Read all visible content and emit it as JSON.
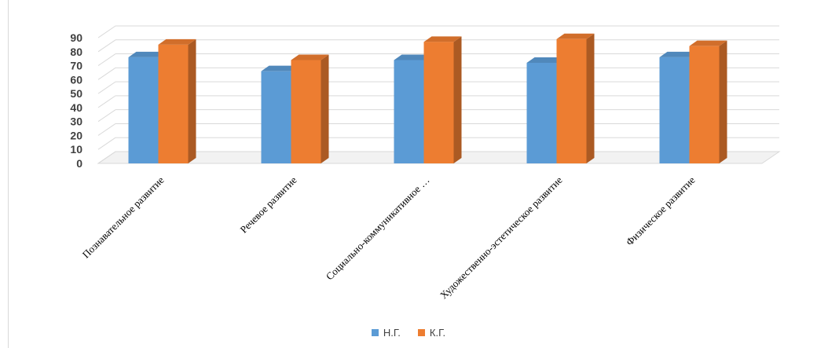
{
  "chart_data": {
    "type": "bar",
    "categories": [
      "Познавательное развитие",
      "Речевое развитие",
      "Социально-коммуникативное …",
      "Художественно-эстетическое  развитие",
      "Физическое  развитие"
    ],
    "series": [
      {
        "name": "Н.Г.",
        "values": [
          76,
          66,
          74,
          72,
          76
        ],
        "color": "#5b9bd5"
      },
      {
        "name": "К.Г.",
        "values": [
          85,
          74,
          87,
          89,
          84
        ],
        "color": "#ed7d31"
      }
    ],
    "yticks": [
      "0",
      "10",
      "20",
      "30",
      "40",
      "50",
      "60",
      "70",
      "80",
      "90"
    ],
    "ylim": [
      0,
      90
    ],
    "grid": true,
    "legend": "bottom",
    "style": "3d-clustered-column"
  }
}
